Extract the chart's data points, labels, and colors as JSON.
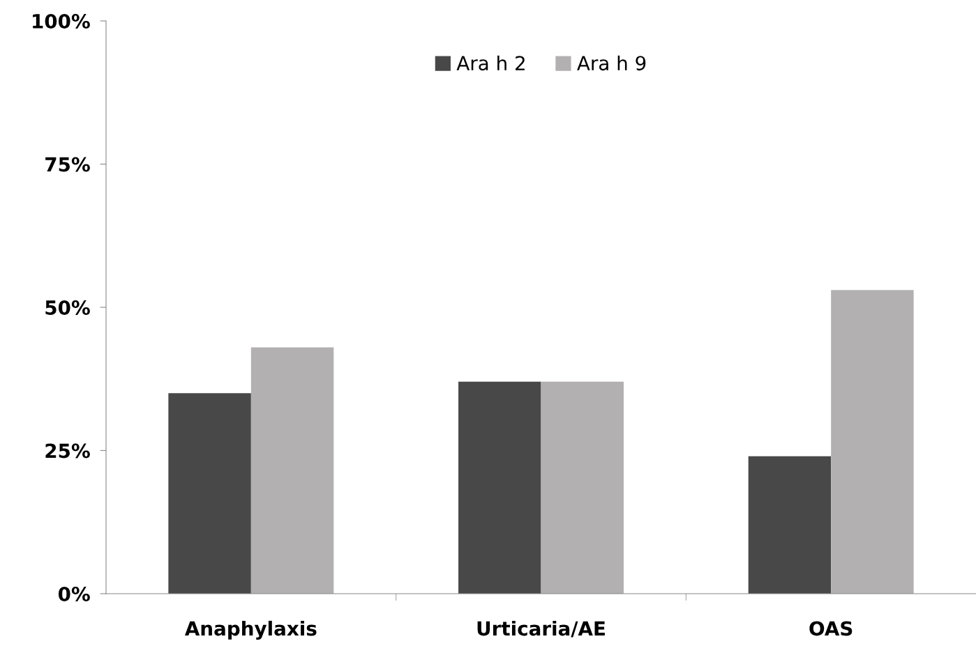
{
  "chart_data": {
    "type": "bar",
    "categories": [
      "Anaphylaxis",
      "Urticaria/AE",
      "OAS"
    ],
    "series": [
      {
        "name": "Ara h 2",
        "color": "#484848",
        "values": [
          35,
          37,
          24
        ]
      },
      {
        "name": "Ara h 9",
        "color": "#b3b0b2",
        "values": [
          43,
          37,
          53
        ]
      }
    ],
    "ylim": [
      0,
      100
    ],
    "yticks": [
      {
        "value": 0,
        "label": "0%"
      },
      {
        "value": 25,
        "label": "25%"
      },
      {
        "value": 50,
        "label": "50%"
      },
      {
        "value": 75,
        "label": "75%"
      },
      {
        "value": 100,
        "label": "100%"
      }
    ],
    "legend": "top",
    "grid": false
  }
}
